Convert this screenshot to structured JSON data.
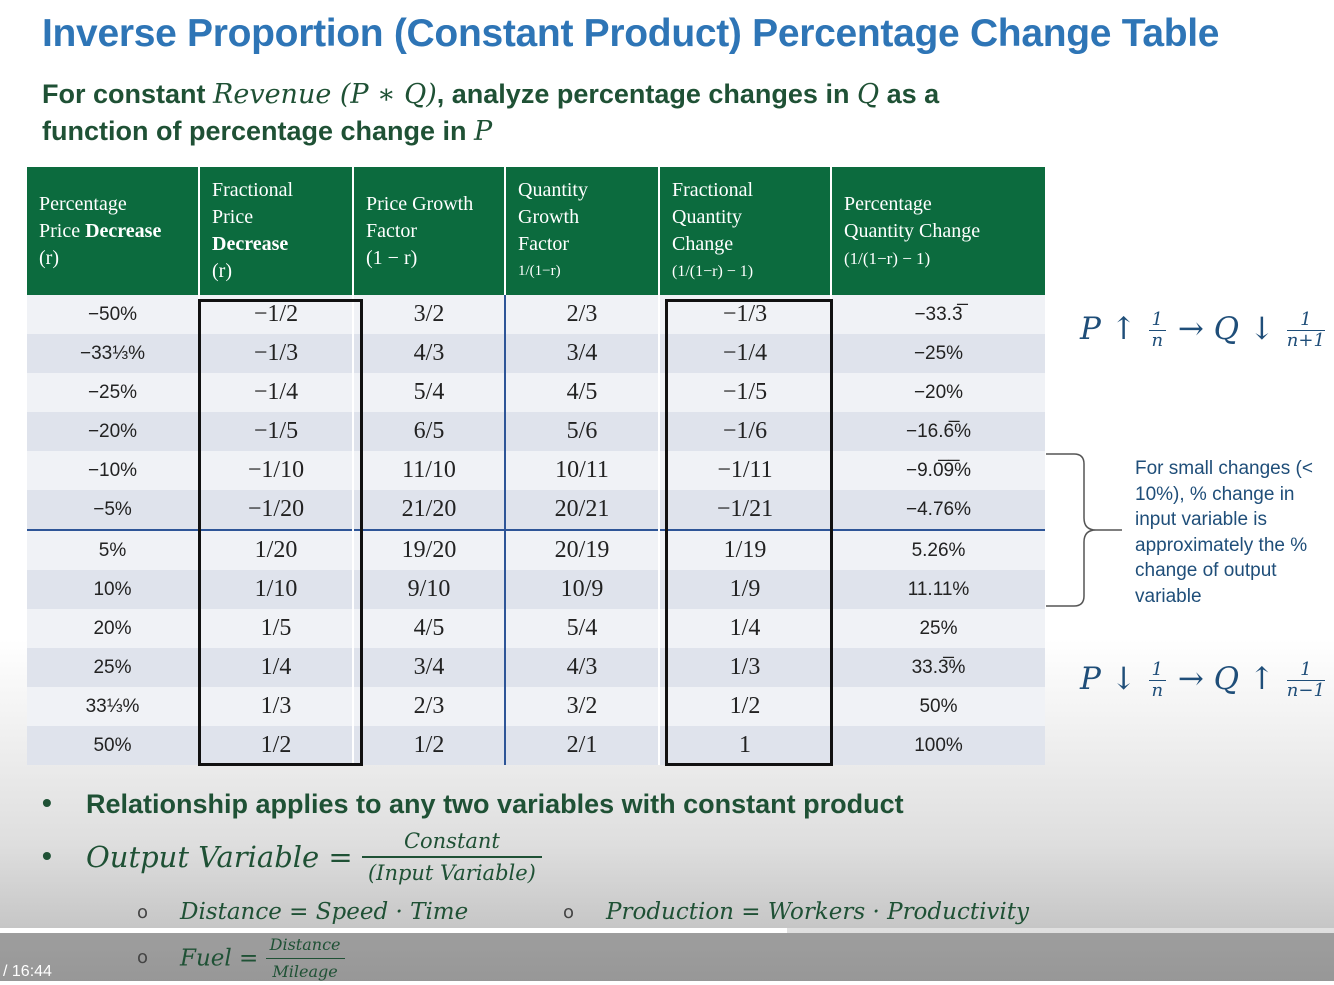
{
  "title": "Inverse Proportion (Constant Product) Percentage Change Table",
  "subtitle": {
    "t1": "For constant ",
    "m1": "Revenue (P ∗ Q)",
    "t2": ", analyze percentage changes in ",
    "m2": "Q",
    "t3": " as a function of percentage change in ",
    "m3": "P"
  },
  "table": {
    "headers": [
      {
        "line1": "Percentage",
        "line2": "Price ",
        "line2b": "Decrease",
        "line3": "(r)"
      },
      {
        "line1": "Fractional",
        "line2": "Price",
        "line2b": "Decrease",
        "line3": "(r)"
      },
      {
        "line1": "Price Growth",
        "line2": "Factor",
        "line3": "(1 − r)"
      },
      {
        "line1": "Quantity",
        "line2": "Growth",
        "line3": "Factor",
        "line4": "1/(1−r)"
      },
      {
        "line1": "Fractional",
        "line2": "Quantity",
        "line3": "Change",
        "line4": "(1/(1−r) − 1)"
      },
      {
        "line1": "Percentage",
        "line2": "Quantity  Change",
        "line3": "(1/(1−r) − 1)"
      }
    ],
    "rows": [
      [
        "−50%",
        "−1/2",
        "3/2",
        "2/3",
        "−1/3",
        "−33.3̅"
      ],
      [
        "−33⅓%",
        "−1/3",
        "4/3",
        "3/4",
        "−1/4",
        "−25%"
      ],
      [
        "−25%",
        "−1/4",
        "5/4",
        "4/5",
        "−1/5",
        "−20%"
      ],
      [
        "−20%",
        "−1/5",
        "6/5",
        "5/6",
        "−1/6",
        "−16.6̅%"
      ],
      [
        "−10%",
        "−1/10",
        "11/10",
        "10/11",
        "−1/11",
        "−9.0̅9̅%"
      ],
      [
        "−5%",
        "−1/20",
        "21/20",
        "20/21",
        "−1/21",
        "−4.76%"
      ],
      [
        "5%",
        "1/20",
        "19/20",
        "20/19",
        "1/19",
        "5.26%"
      ],
      [
        "10%",
        "1/10",
        "9/10",
        "10/9",
        "1/9",
        "11.11%"
      ],
      [
        "20%",
        "1/5",
        "4/5",
        "5/4",
        "1/4",
        "25%"
      ],
      [
        "25%",
        "1/4",
        "3/4",
        "4/3",
        "1/3",
        "33.3̅%"
      ],
      [
        "33⅓%",
        "1/3",
        "2/3",
        "3/2",
        "1/2",
        "50%"
      ],
      [
        "50%",
        "1/2",
        "1/2",
        "2/1",
        "1",
        "100%"
      ]
    ]
  },
  "formula_up": {
    "lhs": "P ↑ ",
    "f1_num": "1",
    "f1_den": "n",
    "mid": " → Q ↓ ",
    "f2_num": "1",
    "f2_den": "n+1"
  },
  "formula_down": {
    "lhs": "P ↓ ",
    "f1_num": "1",
    "f1_den": "n",
    "mid": " → Q ↑ ",
    "f2_num": "1",
    "f2_den": "n−1"
  },
  "side_note": "For small changes (< 10%), % change in input variable is approximately  the % change of  output variable",
  "bullets": {
    "b1": "Relationship applies to any two variables with constant product",
    "b2_lhs": "Output Variable = ",
    "b2_num": "Constant",
    "b2_den": "(Input Variable)"
  },
  "examples": {
    "e1": "Distance = Speed · Time",
    "e2": "Production = Workers · Productivity",
    "e3_lhs": "Fuel = ",
    "e3_num": "Distance",
    "e3_den": "Mileage"
  },
  "video": {
    "time": "/ 16:44",
    "progress": 0.59
  }
}
